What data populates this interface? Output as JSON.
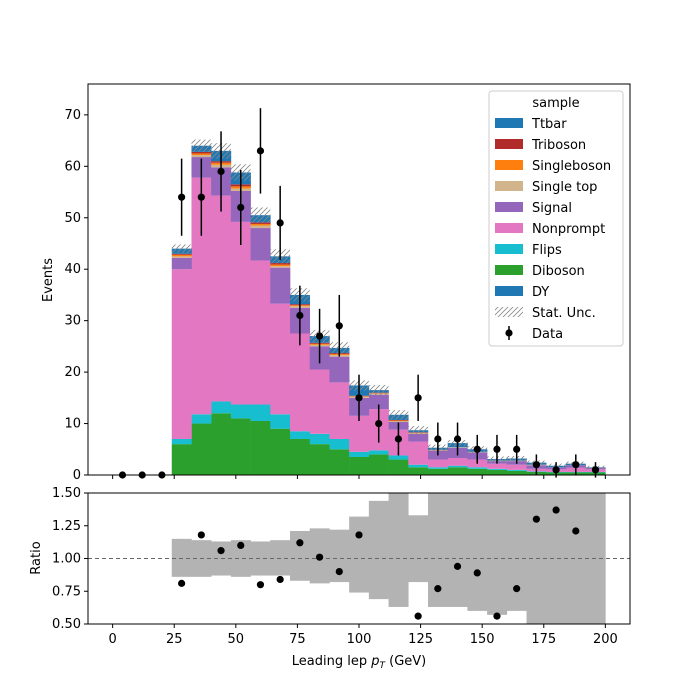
{
  "chart_data": {
    "type": "stacked-histogram-with-ratio",
    "xlabel": "Leading lep",
    "xlabel_symbol": "p",
    "xlabel_sub": "T",
    "xlabel_unit": " (GeV)",
    "top": {
      "ylabel": "Events",
      "ylim": [
        0,
        76
      ],
      "xlim": [
        -10,
        210
      ],
      "yticks": [
        0,
        10,
        20,
        30,
        40,
        50,
        60,
        70
      ],
      "xticks": [
        0,
        25,
        50,
        75,
        100,
        125,
        150,
        175,
        200
      ],
      "bin_edges": [
        0,
        8,
        16,
        24,
        32,
        40,
        48,
        56,
        64,
        72,
        80,
        88,
        96,
        104,
        112,
        120,
        128,
        136,
        144,
        152,
        160,
        168,
        176,
        184,
        192,
        200
      ],
      "stack_order": [
        "DY",
        "Diboson",
        "Flips",
        "Nonprompt",
        "Signal",
        "Single top",
        "Singleboson",
        "Triboson",
        "Ttbar"
      ],
      "series": [
        {
          "name": "DY",
          "color": "#1f77b4",
          "values": [
            0,
            0,
            0,
            0,
            0,
            0,
            0,
            0,
            0,
            0,
            0,
            0,
            0,
            0,
            0,
            0,
            0,
            0,
            0,
            0,
            0,
            0,
            0,
            0,
            0
          ]
        },
        {
          "name": "Diboson",
          "color": "#2ca02c",
          "values": [
            0,
            0,
            0,
            6,
            10,
            12,
            11,
            10.5,
            9,
            7,
            6,
            5,
            3.5,
            4,
            3,
            1.5,
            1.2,
            1.5,
            1.2,
            1,
            0.8,
            0.6,
            0.5,
            0.5,
            0.5
          ]
        },
        {
          "name": "Flips",
          "color": "#17becf",
          "values": [
            0,
            0,
            0,
            1,
            1.8,
            2.3,
            2.7,
            3.2,
            2.8,
            1.5,
            2,
            2,
            1,
            0.8,
            0.8,
            0.5,
            0.3,
            0.3,
            0.3,
            0.2,
            0.2,
            0.1,
            0.1,
            0.1,
            0.1
          ]
        },
        {
          "name": "Nonprompt",
          "color": "#e377c2",
          "values": [
            0,
            0,
            0,
            33,
            46,
            40,
            35.5,
            28,
            21.5,
            19,
            12.5,
            11,
            7,
            8,
            5,
            4.5,
            1.5,
            1.5,
            1.5,
            1,
            1,
            0.5,
            0.5,
            0.8,
            0.5
          ]
        },
        {
          "name": "Signal",
          "color": "#9467bd",
          "values": [
            0,
            0,
            0,
            2.2,
            4,
            5.5,
            6,
            6.3,
            7,
            5,
            4.5,
            5,
            3.5,
            2.8,
            1.5,
            1.5,
            1.7,
            2,
            1.4,
            0.5,
            0.7,
            0.7,
            0.4,
            0.5,
            0.3
          ]
        },
        {
          "name": "Single top",
          "color": "#d2b48c",
          "values": [
            0,
            0,
            0,
            0.3,
            0.4,
            0.5,
            0.5,
            0.5,
            0.3,
            0.3,
            0.3,
            0.3,
            0.2,
            0.2,
            0.2,
            0.1,
            0.1,
            0.1,
            0.1,
            0.1,
            0.1,
            0.1,
            0,
            0,
            0
          ]
        },
        {
          "name": "Singleboson",
          "color": "#ff7f0e",
          "values": [
            0,
            0,
            0,
            0.3,
            0.3,
            0.4,
            0.4,
            0.3,
            0.3,
            0.2,
            0.2,
            0.2,
            0.1,
            0.1,
            0.1,
            0.1,
            0,
            0,
            0,
            0,
            0,
            0,
            0,
            0,
            0
          ]
        },
        {
          "name": "Triboson",
          "color": "#b22b2b",
          "values": [
            0,
            0,
            0,
            0.2,
            0.3,
            0.3,
            0.4,
            0.3,
            0.3,
            0.2,
            0.2,
            0.2,
            0.1,
            0.1,
            0.1,
            0.1,
            0.1,
            0,
            0,
            0,
            0,
            0,
            0,
            0,
            0
          ]
        },
        {
          "name": "Ttbar",
          "color": "#1f77b4",
          "values": [
            0,
            0,
            0,
            1,
            1.2,
            2,
            2.3,
            1.4,
            1.3,
            1.8,
            1.3,
            1,
            2,
            0.5,
            1,
            0.4,
            0.4,
            0.8,
            0.5,
            0.3,
            0.4,
            0.4,
            0.3,
            0.3,
            0.1
          ]
        }
      ],
      "stat_unc": [
        0,
        0,
        0,
        0.8,
        1.2,
        1.5,
        1.6,
        1.5,
        1.4,
        1.3,
        1.2,
        1.1,
        1.0,
        1.0,
        0.9,
        0.8,
        0.6,
        0.6,
        0.6,
        0.5,
        0.5,
        0.4,
        0.4,
        0.4,
        0.3
      ],
      "data_x": [
        4,
        12,
        20,
        28,
        36,
        44,
        52,
        60,
        68,
        76,
        84,
        92,
        100,
        108,
        116,
        124,
        132,
        140,
        148,
        156,
        164,
        172,
        180,
        188,
        196
      ],
      "data_y": [
        0,
        0,
        0,
        54,
        54,
        59,
        52,
        63,
        49,
        31,
        27,
        29,
        15,
        10,
        7,
        15,
        7,
        7,
        5,
        5,
        5,
        2,
        1,
        2,
        1
      ],
      "data_err": [
        0,
        0,
        0,
        7.5,
        7.5,
        7.8,
        7.3,
        8.3,
        7.2,
        5.8,
        5.3,
        6.0,
        4.5,
        3.7,
        3.2,
        4.5,
        3.2,
        3.2,
        2.8,
        2.8,
        2.8,
        2.0,
        1.5,
        2.0,
        1.5
      ],
      "legend": {
        "title": "sample",
        "placement": "top-right",
        "entries": [
          "Ttbar",
          "Triboson",
          "Singleboson",
          "Single top",
          "Signal",
          "Nonprompt",
          "Flips",
          "Diboson",
          "DY",
          "Stat. Unc.",
          "Data"
        ]
      }
    },
    "ratio": {
      "ylabel": "Ratio",
      "ylim": [
        0.5,
        1.5
      ],
      "yticks": [
        "0.50",
        "0.75",
        "1.00",
        "1.25",
        "1.50"
      ],
      "ytick_values": [
        0.5,
        0.75,
        1.0,
        1.25,
        1.5
      ],
      "reference_line": 1.0,
      "band_low": [
        null,
        null,
        null,
        0.86,
        0.86,
        0.87,
        0.86,
        0.87,
        0.87,
        0.83,
        0.81,
        0.82,
        0.74,
        0.69,
        0.63,
        0.82,
        0.63,
        0.63,
        0.6,
        0.57,
        0.6,
        0.5,
        0.5,
        0.5,
        0.5
      ],
      "band_high": [
        null,
        null,
        null,
        1.15,
        1.14,
        1.13,
        1.14,
        1.13,
        1.14,
        1.21,
        1.23,
        1.22,
        1.32,
        1.44,
        1.5,
        1.33,
        1.5,
        1.5,
        1.5,
        1.5,
        1.5,
        1.5,
        1.5,
        1.5,
        1.5
      ],
      "points_x": [
        28,
        36,
        44,
        52,
        60,
        68,
        76,
        84,
        92,
        100,
        124,
        132,
        140,
        148,
        156,
        164,
        172,
        180,
        188
      ],
      "points_y": [
        0.81,
        1.18,
        1.06,
        1.1,
        0.8,
        0.84,
        1.12,
        1.01,
        0.9,
        1.18,
        0.56,
        0.77,
        0.94,
        0.89,
        0.56,
        0.77,
        1.3,
        1.37,
        1.21
      ]
    }
  }
}
